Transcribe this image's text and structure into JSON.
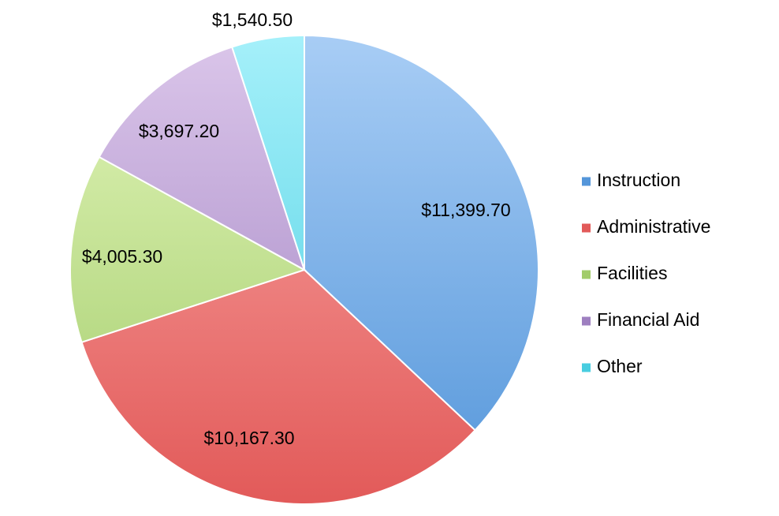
{
  "chart_data": {
    "type": "pie",
    "title": "",
    "legend_position": "right",
    "slices": [
      {
        "name": "Instruction",
        "value": 11399.7,
        "label": "$11,399.70",
        "color_light": "#a8cdf5",
        "color_dark": "#5496da"
      },
      {
        "name": "Administrative",
        "value": 10167.3,
        "label": "$10,167.30",
        "color_light": "#f9a7a5",
        "color_dark": "#e25a59"
      },
      {
        "name": "Facilities",
        "value": 4005.3,
        "label": "$4,005.30",
        "color_light": "#e2f5ba",
        "color_dark": "#a2cc6a"
      },
      {
        "name": "Financial Aid",
        "value": 3697.2,
        "label": "$3,697.20",
        "color_light": "#dbc6ea",
        "color_dark": "#9e7fc0"
      },
      {
        "name": "Other",
        "value": 1540.5,
        "label": "$1,540.50",
        "color_light": "#a5f0fa",
        "color_dark": "#48cde0"
      }
    ]
  }
}
